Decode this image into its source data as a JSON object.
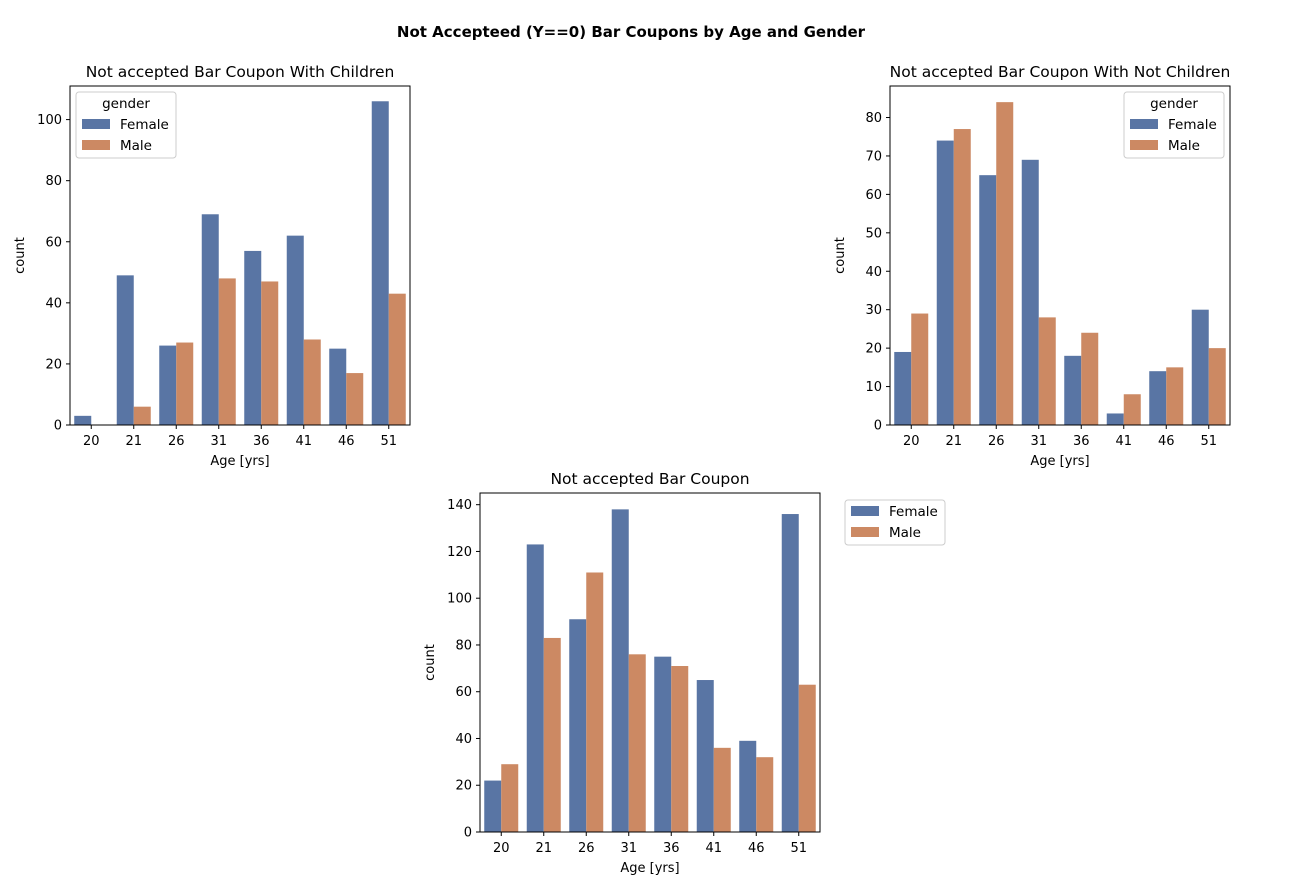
{
  "figure": {
    "suptitle": "Not Accepteed (Y==0) Bar Coupons by Age and Gender"
  },
  "colors": {
    "Female": "#5975a4",
    "Male": "#cc8963"
  },
  "chart_data": [
    {
      "type": "bar",
      "title": "Not accepted Bar Coupon With Children",
      "xlabel": "Age [yrs]",
      "ylabel": "count",
      "categories": [
        "20",
        "21",
        "26",
        "31",
        "36",
        "41",
        "46",
        "51"
      ],
      "series": [
        {
          "name": "Female",
          "values": [
            3,
            49,
            26,
            69,
            57,
            62,
            25,
            106
          ]
        },
        {
          "name": "Male",
          "values": [
            0,
            6,
            27,
            48,
            47,
            28,
            17,
            43
          ]
        }
      ],
      "ylim": [
        0,
        111
      ],
      "yticks": [
        0,
        20,
        40,
        60,
        80,
        100
      ],
      "legend": {
        "title": "gender",
        "placement": "upper left"
      },
      "grid": false
    },
    {
      "type": "bar",
      "title": "Not accepted Bar Coupon With Not Children",
      "xlabel": "Age [yrs]",
      "ylabel": "count",
      "categories": [
        "20",
        "21",
        "26",
        "31",
        "36",
        "41",
        "46",
        "51"
      ],
      "series": [
        {
          "name": "Female",
          "values": [
            19,
            74,
            65,
            69,
            18,
            3,
            14,
            30
          ]
        },
        {
          "name": "Male",
          "values": [
            29,
            77,
            84,
            28,
            24,
            8,
            15,
            20
          ]
        }
      ],
      "ylim": [
        0,
        88.2
      ],
      "yticks": [
        0,
        10,
        20,
        30,
        40,
        50,
        60,
        70,
        80
      ],
      "legend": {
        "title": "gender",
        "placement": "upper right"
      },
      "grid": false
    },
    {
      "type": "bar",
      "title": "Not accepted Bar Coupon",
      "xlabel": "Age [yrs]",
      "ylabel": "count",
      "categories": [
        "20",
        "21",
        "26",
        "31",
        "36",
        "41",
        "46",
        "51"
      ],
      "series": [
        {
          "name": "Female",
          "values": [
            22,
            123,
            91,
            138,
            75,
            65,
            39,
            136
          ]
        },
        {
          "name": "Male",
          "values": [
            29,
            83,
            111,
            76,
            71,
            36,
            32,
            63
          ]
        }
      ],
      "ylim": [
        0,
        145
      ],
      "yticks": [
        0,
        20,
        40,
        60,
        80,
        100,
        120,
        140
      ],
      "legend": {
        "title": "",
        "placement": "outside upper right"
      },
      "grid": false
    }
  ]
}
